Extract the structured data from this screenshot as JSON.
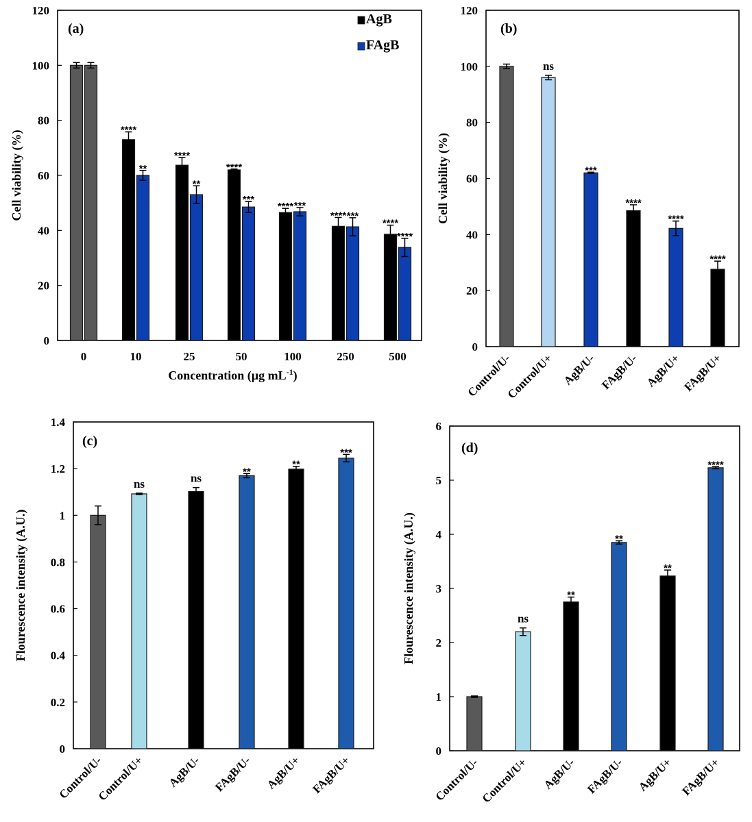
{
  "chart_data": [
    {
      "id": "a",
      "type": "bar",
      "panel_label": "(a)",
      "title": "",
      "xlabel": "Concentration (µg mL",
      "xlabel_sup": "-1",
      "xlabel_close": ")",
      "ylabel": "Cell viability (%)",
      "ylim": [
        0,
        120
      ],
      "yticks": [
        0,
        20,
        40,
        60,
        80,
        100,
        120
      ],
      "ytick_labels": [
        "0",
        "20",
        "40",
        "60",
        "80",
        "100",
        "120"
      ],
      "grid": false,
      "legend_position": "top-right",
      "categories": [
        "0",
        "10",
        "25",
        "50",
        "100",
        "250",
        "500"
      ],
      "series": [
        {
          "name": "AgB",
          "color": "#000000",
          "values": [
            100,
            73,
            63.7,
            62,
            46.5,
            41.5,
            38.6
          ],
          "errors": [
            1,
            2.8,
            2.8,
            0.3,
            1.5,
            3.2,
            3.3
          ],
          "significance": [
            "",
            "****",
            "****",
            "****",
            "****",
            "****",
            "****"
          ]
        },
        {
          "name": "FAgB",
          "color": "#0d3fb0",
          "values": [
            100,
            60,
            53,
            48.5,
            46.8,
            41.3,
            33.8
          ],
          "errors": [
            1,
            1.8,
            3.2,
            2,
            1.5,
            3.3,
            3.3
          ],
          "significance": [
            "",
            "**",
            "**",
            "***",
            "***",
            "***",
            "****"
          ]
        }
      ],
      "zero_color": "#595959"
    },
    {
      "id": "b",
      "type": "bar",
      "panel_label": "(b)",
      "title": "",
      "xlabel": "",
      "ylabel": "Cell viability (%)",
      "ylim": [
        0,
        120
      ],
      "yticks": [
        0,
        20,
        40,
        60,
        80,
        100,
        120
      ],
      "ytick_labels": [
        "0",
        "20",
        "40",
        "60",
        "80",
        "100",
        "120"
      ],
      "grid": false,
      "categories": [
        "Control/U-",
        "Control/U+",
        "AgB/U-",
        "FAgB/U-",
        "AgB/U+",
        "FAgB/U+"
      ],
      "values": [
        100,
        96,
        62,
        48.5,
        42.2,
        27.6
      ],
      "errors": [
        0.8,
        0.8,
        0.2,
        2.1,
        2.6,
        2.9
      ],
      "significance": [
        "",
        "ns",
        "***",
        "****",
        "****",
        "****"
      ],
      "colors": [
        "#595959",
        "#b3d5f1",
        "#0d3fb0",
        "#000000",
        "#0d3fb0",
        "#000000"
      ]
    },
    {
      "id": "c",
      "type": "bar",
      "panel_label": "(c)",
      "title": "",
      "xlabel": "",
      "ylabel": "Flourescence intensity (A.U.)",
      "ylim": [
        0,
        1.4
      ],
      "yticks": [
        0,
        0.2,
        0.4,
        0.6,
        0.8,
        1.0,
        1.2,
        1.4
      ],
      "ytick_labels": [
        "0",
        "0.2",
        "0.4",
        "0.6",
        "0.8",
        "1",
        "1.2",
        "1.4"
      ],
      "grid": false,
      "categories": [
        "Control/U-",
        "Control/U+",
        "AgB/U-",
        "FAgB/U-",
        "AgB/U+",
        "FAgB/U+"
      ],
      "values": [
        1.0,
        1.092,
        1.102,
        1.17,
        1.198,
        1.245
      ],
      "errors": [
        0.04,
        0.003,
        0.017,
        0.009,
        0.012,
        0.016
      ],
      "significance": [
        "",
        "ns",
        "ns",
        "**",
        "**",
        "***"
      ],
      "colors": [
        "#595959",
        "#a8dbe8",
        "#000000",
        "#1f5bad",
        "#000000",
        "#1f5bad"
      ]
    },
    {
      "id": "d",
      "type": "bar",
      "panel_label": "(d)",
      "title": "",
      "xlabel": "",
      "ylabel": "Flourescence intensity (A.U.)",
      "ylim": [
        0,
        6
      ],
      "yticks": [
        0,
        1,
        2,
        3,
        4,
        5,
        6
      ],
      "ytick_labels": [
        "0",
        "1",
        "2",
        "3",
        "4",
        "5",
        "6"
      ],
      "grid": false,
      "categories": [
        "Control/U-",
        "Control/U+",
        "AgB/U-",
        "FAgB/U-",
        "AgB/U+",
        "FAgB/U+"
      ],
      "values": [
        1.0,
        2.2,
        2.75,
        3.85,
        3.23,
        5.23
      ],
      "errors": [
        0.01,
        0.07,
        0.09,
        0.03,
        0.11,
        0.02
      ],
      "significance": [
        "",
        "ns",
        "**",
        "**",
        "**",
        "****"
      ],
      "colors": [
        "#595959",
        "#a8dbe8",
        "#000000",
        "#1f5bad",
        "#000000",
        "#1f5bad"
      ]
    }
  ]
}
